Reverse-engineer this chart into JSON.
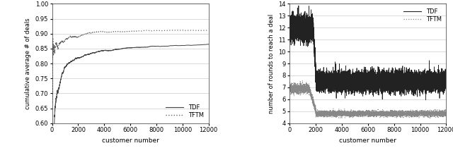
{
  "fig_width": 6.4,
  "fig_height": 2.17,
  "dpi": 100,
  "left_plot": {
    "xlabel": "customer number",
    "ylabel": "cumulative average # of deals",
    "xlim": [
      0,
      12000
    ],
    "ylim": [
      0.6,
      1.0
    ],
    "yticks": [
      0.6,
      0.65,
      0.7,
      0.75,
      0.8,
      0.85,
      0.9,
      0.95,
      1.0
    ],
    "xticks": [
      0,
      2000,
      4000,
      6000,
      8000,
      10000,
      12000
    ],
    "legend": [
      "TDF",
      "TFTM"
    ],
    "tdf_color": "#444444",
    "tftm_color": "#666666",
    "grid_color": "#cccccc"
  },
  "right_plot": {
    "xlabel": "customer number",
    "ylabel": "number of rounds to reach a deal",
    "xlim": [
      0,
      12000
    ],
    "ylim": [
      4,
      14
    ],
    "yticks": [
      4,
      5,
      6,
      7,
      8,
      9,
      10,
      11,
      12,
      13,
      14
    ],
    "xticks": [
      0,
      2000,
      4000,
      6000,
      8000,
      10000,
      12000
    ],
    "legend": [
      "TDF",
      "TFTM"
    ],
    "tdf_color": "#222222",
    "tftm_color": "#888888",
    "grid_color": "#cccccc"
  }
}
